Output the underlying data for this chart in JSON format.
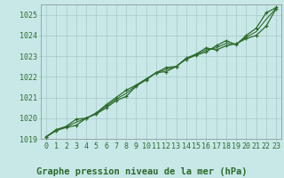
{
  "title": "Graphe pression niveau de la mer (hPa)",
  "x_labels": [
    "0",
    "1",
    "2",
    "3",
    "4",
    "5",
    "6",
    "7",
    "8",
    "9",
    "10",
    "11",
    "12",
    "13",
    "14",
    "15",
    "16",
    "17",
    "18",
    "19",
    "20",
    "21",
    "22",
    "23"
  ],
  "x_values": [
    0,
    1,
    2,
    3,
    4,
    5,
    6,
    7,
    8,
    9,
    10,
    11,
    12,
    13,
    14,
    15,
    16,
    17,
    18,
    19,
    20,
    21,
    22,
    23
  ],
  "series1": [
    1019.1,
    1019.4,
    1019.55,
    1019.65,
    1020.0,
    1020.2,
    1020.5,
    1020.85,
    1021.05,
    1021.55,
    1021.85,
    1022.2,
    1022.45,
    1022.5,
    1022.85,
    1023.05,
    1023.2,
    1023.5,
    1023.75,
    1023.55,
    1024.0,
    1024.35,
    1025.1,
    1025.35
  ],
  "series2": [
    1019.1,
    1019.45,
    1019.6,
    1019.95,
    1020.0,
    1020.25,
    1020.65,
    1021.0,
    1021.35,
    1021.6,
    1021.9,
    1022.2,
    1022.25,
    1022.5,
    1022.9,
    1023.1,
    1023.4,
    1023.3,
    1023.5,
    1023.6,
    1023.85,
    1024.0,
    1024.45,
    1025.3
  ],
  "series3": [
    1019.1,
    1019.4,
    1019.58,
    1019.8,
    1020.0,
    1020.22,
    1020.58,
    1020.92,
    1021.2,
    1021.58,
    1021.88,
    1022.2,
    1022.35,
    1022.5,
    1022.88,
    1023.08,
    1023.3,
    1023.4,
    1023.62,
    1023.58,
    1023.92,
    1024.18,
    1024.78,
    1025.32
  ],
  "line_color": "#2d6a2d",
  "bg_color": "#c8e8e8",
  "grid_color": "#a8c8c8",
  "ylim": [
    1019.0,
    1025.5
  ],
  "yticks": [
    1019,
    1020,
    1021,
    1022,
    1023,
    1024,
    1025
  ],
  "title_fontsize": 7.5,
  "tick_fontsize": 6.0,
  "title_color": "#2d6a2d"
}
